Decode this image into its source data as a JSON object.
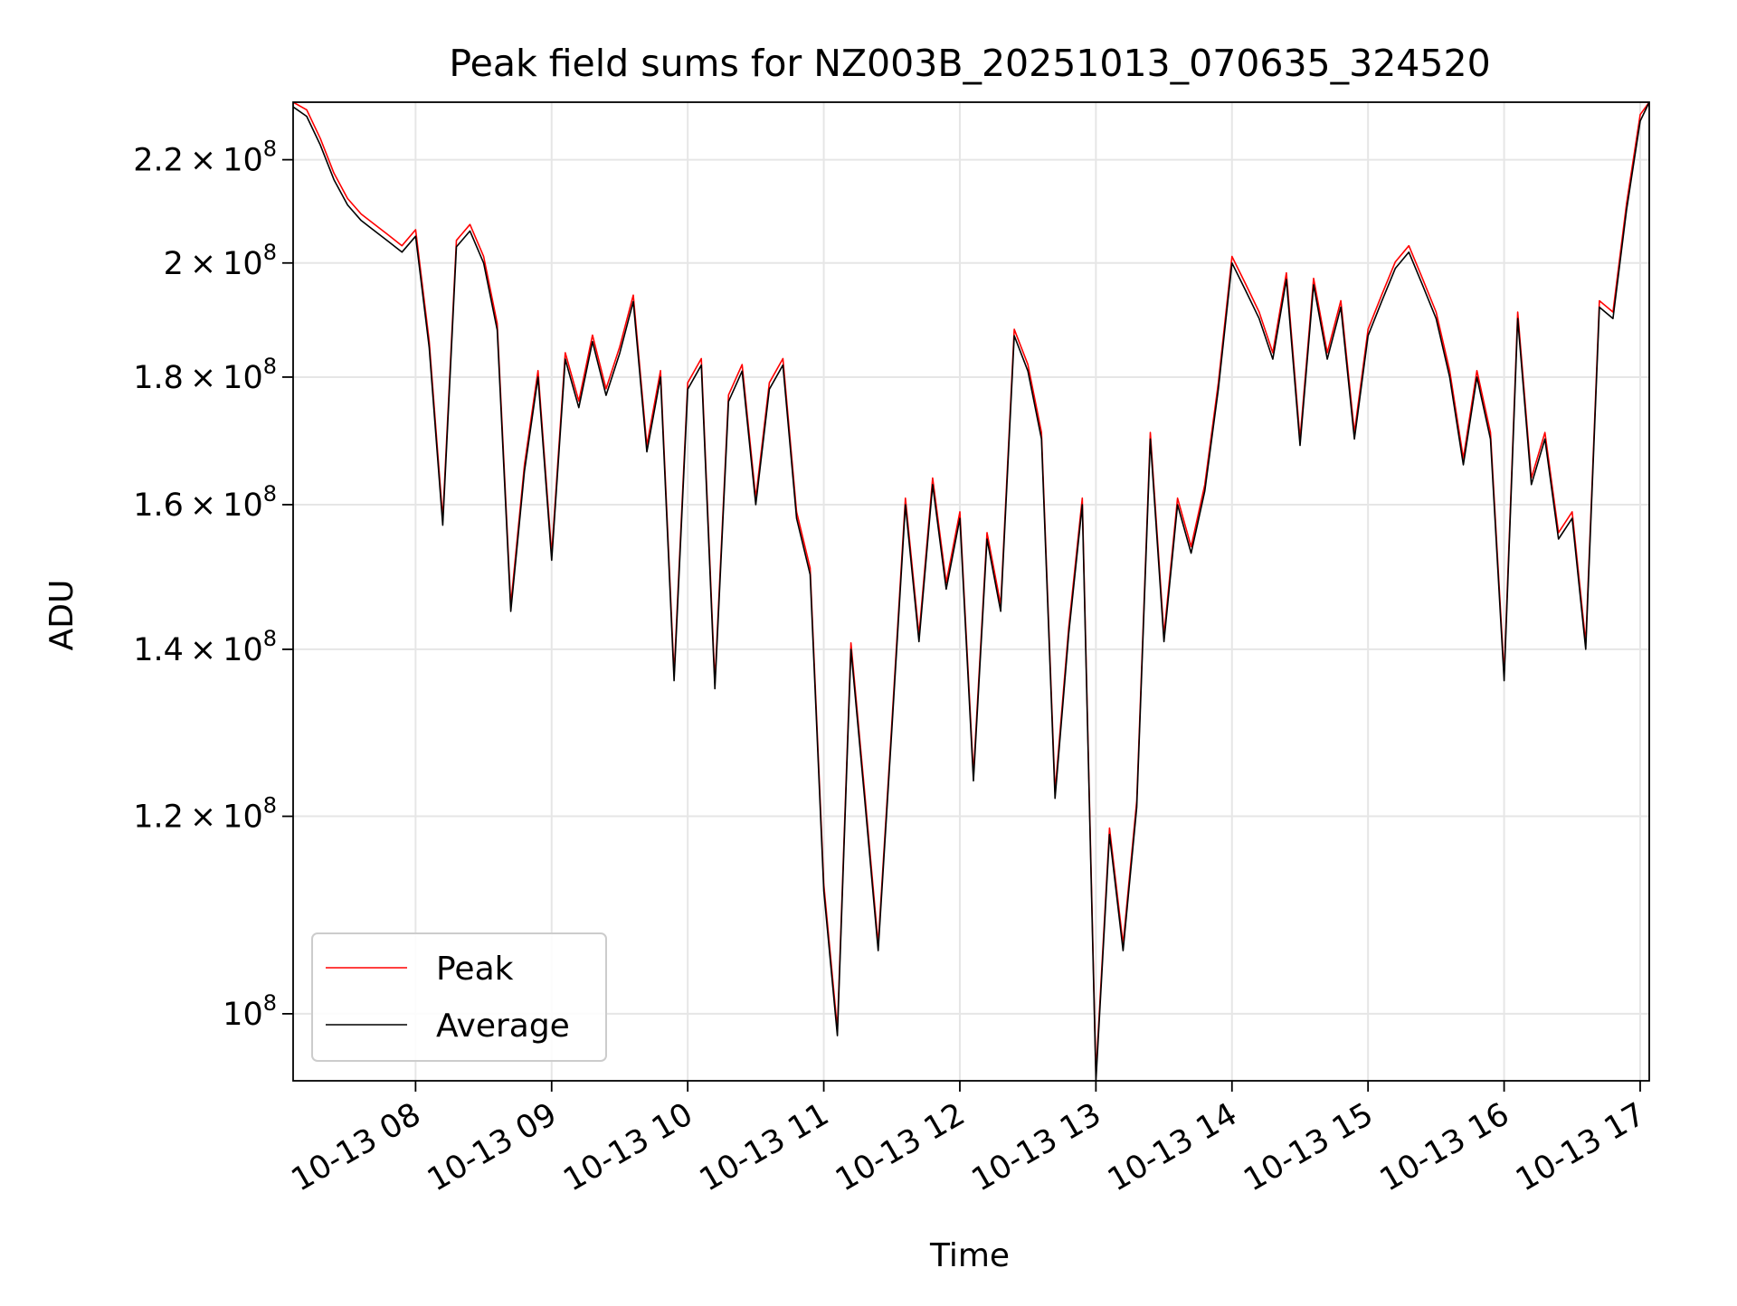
{
  "chart_data": {
    "type": "line",
    "title": "Peak field sums for NZ003B_20251013_070635_324520",
    "xlabel": "Time",
    "ylabel": "ADU",
    "y_scale": "log",
    "xlim": [
      "2025-10-13 07:06",
      "2025-10-13 17:04"
    ],
    "ylim": [
      94000000,
      232000000
    ],
    "x_ticks": [
      {
        "value": "2025-10-13 08:00",
        "label": "10-13 08"
      },
      {
        "value": "2025-10-13 09:00",
        "label": "10-13 09"
      },
      {
        "value": "2025-10-13 10:00",
        "label": "10-13 10"
      },
      {
        "value": "2025-10-13 11:00",
        "label": "10-13 11"
      },
      {
        "value": "2025-10-13 12:00",
        "label": "10-13 12"
      },
      {
        "value": "2025-10-13 13:00",
        "label": "10-13 13"
      },
      {
        "value": "2025-10-13 14:00",
        "label": "10-13 14"
      },
      {
        "value": "2025-10-13 15:00",
        "label": "10-13 15"
      },
      {
        "value": "2025-10-13 16:00",
        "label": "10-13 16"
      },
      {
        "value": "2025-10-13 17:00",
        "label": "10-13 17"
      }
    ],
    "y_ticks": [
      {
        "value": 100000000,
        "mantissa": "",
        "exponent": "8"
      },
      {
        "value": 120000000,
        "mantissa": "1.2",
        "exponent": "8"
      },
      {
        "value": 140000000,
        "mantissa": "1.4",
        "exponent": "8"
      },
      {
        "value": 160000000,
        "mantissa": "1.6",
        "exponent": "8"
      },
      {
        "value": 180000000,
        "mantissa": "1.8",
        "exponent": "8"
      },
      {
        "value": 200000000,
        "mantissa": "2",
        "exponent": "8"
      },
      {
        "value": 220000000,
        "mantissa": "2.2",
        "exponent": "8"
      }
    ],
    "tick_times_sign": "×",
    "tick_base": "10",
    "grid": true,
    "legend_position": "lower-left",
    "series": [
      {
        "name": "Peak",
        "color": "#ff0000",
        "offset_ratio": 1.006
      },
      {
        "name": "Average",
        "color": "#000000",
        "offset_ratio": 1.0
      }
    ],
    "x": [
      "2025-10-13 07:06",
      "2025-10-13 07:12",
      "2025-10-13 07:18",
      "2025-10-13 07:24",
      "2025-10-13 07:30",
      "2025-10-13 07:36",
      "2025-10-13 07:42",
      "2025-10-13 07:48",
      "2025-10-13 07:54",
      "2025-10-13 08:00",
      "2025-10-13 08:06",
      "2025-10-13 08:12",
      "2025-10-13 08:18",
      "2025-10-13 08:24",
      "2025-10-13 08:30",
      "2025-10-13 08:36",
      "2025-10-13 08:42",
      "2025-10-13 08:48",
      "2025-10-13 08:54",
      "2025-10-13 09:00",
      "2025-10-13 09:06",
      "2025-10-13 09:12",
      "2025-10-13 09:18",
      "2025-10-13 09:24",
      "2025-10-13 09:30",
      "2025-10-13 09:36",
      "2025-10-13 09:42",
      "2025-10-13 09:48",
      "2025-10-13 09:54",
      "2025-10-13 10:00",
      "2025-10-13 10:06",
      "2025-10-13 10:12",
      "2025-10-13 10:18",
      "2025-10-13 10:24",
      "2025-10-13 10:30",
      "2025-10-13 10:36",
      "2025-10-13 10:42",
      "2025-10-13 10:48",
      "2025-10-13 10:54",
      "2025-10-13 11:00",
      "2025-10-13 11:06",
      "2025-10-13 11:12",
      "2025-10-13 11:18",
      "2025-10-13 11:24",
      "2025-10-13 11:30",
      "2025-10-13 11:36",
      "2025-10-13 11:42",
      "2025-10-13 11:48",
      "2025-10-13 11:54",
      "2025-10-13 12:00",
      "2025-10-13 12:06",
      "2025-10-13 12:12",
      "2025-10-13 12:18",
      "2025-10-13 12:24",
      "2025-10-13 12:30",
      "2025-10-13 12:36",
      "2025-10-13 12:42",
      "2025-10-13 12:48",
      "2025-10-13 12:54",
      "2025-10-13 13:00",
      "2025-10-13 13:06",
      "2025-10-13 13:12",
      "2025-10-13 13:18",
      "2025-10-13 13:24",
      "2025-10-13 13:30",
      "2025-10-13 13:36",
      "2025-10-13 13:42",
      "2025-10-13 13:48",
      "2025-10-13 13:54",
      "2025-10-13 14:00",
      "2025-10-13 14:06",
      "2025-10-13 14:12",
      "2025-10-13 14:18",
      "2025-10-13 14:24",
      "2025-10-13 14:30",
      "2025-10-13 14:36",
      "2025-10-13 14:42",
      "2025-10-13 14:48",
      "2025-10-13 14:54",
      "2025-10-13 15:00",
      "2025-10-13 15:06",
      "2025-10-13 15:12",
      "2025-10-13 15:18",
      "2025-10-13 15:24",
      "2025-10-13 15:30",
      "2025-10-13 15:36",
      "2025-10-13 15:42",
      "2025-10-13 15:48",
      "2025-10-13 15:54",
      "2025-10-13 16:00",
      "2025-10-13 16:06",
      "2025-10-13 16:12",
      "2025-10-13 16:18",
      "2025-10-13 16:24",
      "2025-10-13 16:30",
      "2025-10-13 16:36",
      "2025-10-13 16:42",
      "2025-10-13 16:48",
      "2025-10-13 16:54",
      "2025-10-13 17:00",
      "2025-10-13 17:04"
    ],
    "values": [
      231000000,
      229000000,
      223000000,
      216000000,
      211000000,
      208000000,
      206000000,
      204000000,
      202000000,
      205000000,
      185000000,
      157000000,
      203000000,
      206000000,
      200000000,
      188000000,
      145000000,
      165000000,
      180000000,
      152000000,
      183000000,
      175000000,
      186000000,
      177000000,
      184000000,
      193000000,
      168000000,
      180000000,
      136000000,
      178000000,
      182000000,
      135000000,
      176000000,
      181000000,
      160000000,
      178000000,
      182000000,
      158000000,
      150000000,
      112000000,
      98000000,
      140000000,
      122000000,
      106000000,
      130000000,
      160000000,
      141000000,
      163000000,
      148000000,
      158000000,
      124000000,
      155000000,
      145000000,
      187000000,
      181000000,
      170000000,
      122000000,
      142000000,
      160000000,
      94000000,
      118000000,
      106000000,
      121000000,
      170000000,
      141000000,
      160000000,
      153000000,
      162000000,
      178000000,
      200000000,
      195000000,
      190000000,
      183000000,
      197000000,
      169000000,
      196000000,
      183000000,
      192000000,
      170000000,
      187000000,
      193000000,
      199000000,
      202000000,
      196000000,
      190000000,
      180000000,
      166000000,
      180000000,
      170000000,
      136000000,
      190000000,
      163000000,
      170000000,
      155000000,
      158000000,
      140000000,
      192000000,
      190000000,
      210000000,
      228000000,
      232000000
    ]
  }
}
